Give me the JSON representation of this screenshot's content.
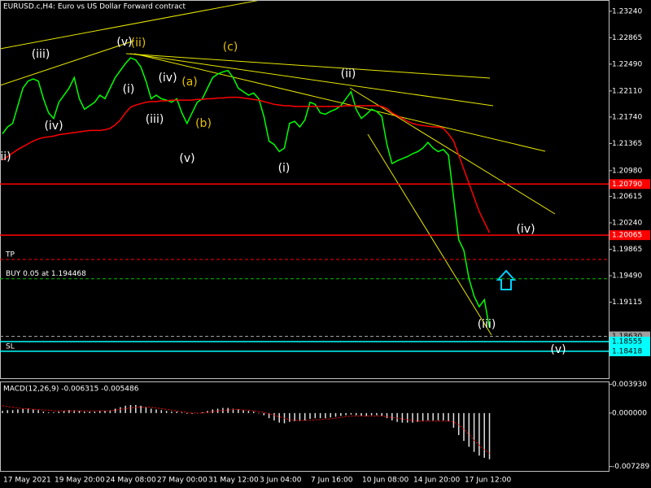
{
  "chart_data": [
    {
      "type": "line",
      "title": "EURUSD.c,H4:  Euro vs US Dollar Forward contract",
      "categories": [
        "17 May 2021",
        null,
        null,
        null,
        null,
        null,
        null,
        null,
        null,
        null,
        "19 May 20:00",
        null,
        null,
        null,
        null,
        null,
        null,
        null,
        null,
        null,
        "24 May 08:00",
        null,
        null,
        null,
        null,
        null,
        null,
        null,
        null,
        null,
        "27 May 00:00",
        null,
        null,
        null,
        null,
        null,
        null,
        null,
        null,
        null,
        "31 May 12:00",
        null,
        null,
        null,
        null,
        null,
        null,
        null,
        null,
        null,
        "3 Jun 04:00",
        null,
        null,
        null,
        null,
        null,
        null,
        null,
        null,
        null,
        "7 Jun 16:00",
        null,
        null,
        null,
        null,
        null,
        null,
        null,
        null,
        null,
        "10 Jun 08:00",
        null,
        null,
        null,
        null,
        null,
        null,
        null,
        null,
        null,
        "14 Jun 20:00",
        null,
        null,
        null,
        null,
        null,
        null,
        null,
        null,
        null,
        "17 Jun 12:00",
        null,
        null,
        null,
        null,
        null
      ],
      "series": [
        {
          "color": "#00ff00",
          "values": [
            1.215,
            1.216,
            1.2165,
            1.219,
            1.2215,
            1.2225,
            1.2228,
            1.2225,
            1.22,
            1.218,
            1.2172,
            1.2195,
            1.2205,
            1.2215,
            1.223,
            1.22,
            1.2185,
            1.219,
            1.2195,
            1.2205,
            1.22,
            1.2215,
            1.223,
            1.224,
            1.225,
            1.2258,
            1.2255,
            1.2245,
            1.2225,
            1.22,
            1.2205,
            1.22,
            1.2198,
            1.2195,
            1.22,
            1.218,
            1.2165,
            1.218,
            1.2195,
            1.22,
            1.2215,
            1.223,
            1.2235,
            1.2238,
            1.224,
            1.223,
            1.2215,
            1.221,
            1.2205,
            1.2208,
            1.22,
            1.2175,
            1.214,
            1.2135,
            1.2125,
            1.213,
            1.2165,
            1.2168,
            1.216,
            1.217,
            1.2195,
            1.2192,
            1.218,
            1.2178,
            1.2182,
            1.2185,
            1.219,
            1.22,
            1.221,
            1.2185,
            1.2172,
            1.2178,
            1.2185,
            1.2182,
            1.2175,
            1.2135,
            1.2108,
            1.2112,
            1.2115,
            1.2118,
            1.2122,
            1.2125,
            1.213,
            1.2138,
            1.213,
            1.2125,
            1.2128,
            1.212,
            1.206,
            1.2,
            1.1985,
            1.1945,
            1.192,
            1.1905,
            1.1915,
            1.1875
          ]
        },
        {
          "color": "#ff0000",
          "values": [
            1.2113,
            1.2118,
            1.2123,
            1.2128,
            1.2132,
            1.2136,
            1.214,
            1.2143,
            1.2145,
            1.2146,
            1.2147,
            1.2149,
            1.215,
            1.2151,
            1.2152,
            1.2153,
            1.2154,
            1.2155,
            1.2155,
            1.2155,
            1.2156,
            1.2158,
            1.2163,
            1.217,
            1.218,
            1.2188,
            1.2191,
            1.2193,
            1.2195,
            1.2196,
            1.2196,
            1.2197,
            1.2197,
            1.2198,
            1.2198,
            1.2198,
            1.2198,
            1.2198,
            1.2199,
            1.2199,
            1.22,
            1.22,
            1.2201,
            1.2201,
            1.2202,
            1.2202,
            1.2202,
            1.2201,
            1.22,
            1.2199,
            1.2198,
            1.2196,
            1.2194,
            1.2192,
            1.2191,
            1.219,
            1.219,
            1.2189,
            1.2189,
            1.2189,
            1.2189,
            1.2189,
            1.2189,
            1.2189,
            1.2189,
            1.2189,
            1.2189,
            1.219,
            1.219,
            1.219,
            1.219,
            1.219,
            1.219,
            1.219,
            1.2189,
            1.2186,
            1.218,
            1.2176,
            1.2172,
            1.2168,
            1.2165,
            1.2163,
            1.2162,
            1.2161,
            1.216,
            1.216,
            1.2158,
            1.215,
            1.214,
            1.212,
            1.21,
            1.208,
            1.206,
            1.204,
            1.2025,
            1.201
          ]
        }
      ],
      "ylim": [
        1.18025,
        1.234
      ],
      "yticks": [
        {
          "value": 1.2324,
          "label": "1.23240"
        },
        {
          "value": 1.22865,
          "label": "1.22865"
        },
        {
          "value": 1.2249,
          "label": "1.22490"
        },
        {
          "value": 1.2211,
          "label": "1.22110"
        },
        {
          "value": 1.2174,
          "label": "1.21740"
        },
        {
          "value": 1.21365,
          "label": "1.21365"
        },
        {
          "value": 1.2098,
          "label": "1.20980"
        },
        {
          "value": 1.20615,
          "label": "1.20615"
        },
        {
          "value": 1.2024,
          "label": "1.20240"
        },
        {
          "value": 1.19865,
          "label": "1.19865"
        },
        {
          "value": 1.1949,
          "label": "1.19490"
        },
        {
          "value": 1.19115,
          "label": "1.19115"
        }
      ],
      "levels": [
        {
          "value": 1.2079,
          "label": "1.20790",
          "color": "#ff0000"
        },
        {
          "value": 1.20065,
          "label": "1.20065",
          "color": "#ff0000"
        },
        {
          "name": "TP",
          "value": 1.1972,
          "color": "#ff0000",
          "dashed": true
        },
        {
          "name": "BUY 0.05 at 1.194468",
          "value": 1.19447,
          "color": "#00c000",
          "dashed": true
        },
        {
          "value": 1.1863,
          "label": "1.18630",
          "color": "#a0a0a0",
          "dashed": true
        },
        {
          "value": 1.18555,
          "label": "1.18555",
          "color": "#00ffff"
        },
        {
          "name": "SL",
          "value": 1.18418,
          "label": "1.18418",
          "color": "#00ffff"
        }
      ],
      "annotations": [
        {
          "text": "ii)",
          "color": "#ffffff"
        },
        {
          "text": "(iii)",
          "color": "#ffffff"
        },
        {
          "text": "(iv)",
          "color": "#ffffff"
        },
        {
          "text": "(v)",
          "color": "#ffffff"
        },
        {
          "text": "(ii)",
          "color": "#e6c000"
        },
        {
          "text": "(i)",
          "color": "#ffffff"
        },
        {
          "text": "(iii)",
          "color": "#ffffff"
        },
        {
          "text": "(iv)",
          "color": "#ffffff"
        },
        {
          "text": "(a)",
          "color": "#e6c000"
        },
        {
          "text": "(b)",
          "color": "#e6c000"
        },
        {
          "text": "(v)",
          "color": "#ffffff"
        },
        {
          "text": "(c)",
          "color": "#e6c000"
        },
        {
          "text": "(i)",
          "color": "#ffffff"
        },
        {
          "text": "(ii)",
          "color": "#ffffff"
        },
        {
          "text": "(iv)",
          "color": "#ffffff"
        },
        {
          "text": "(iii)",
          "color": "#ffffff"
        },
        {
          "text": "(v)",
          "color": "#ffffff"
        }
      ]
    },
    {
      "type": "bar",
      "title": "MACD(12,26,9) -0.006315 -0.005486",
      "series": [
        {
          "type": "bar",
          "color": "#e0e0e0",
          "values": [
            0.0003,
            0.0004,
            0.0004,
            0.0005,
            0.0006,
            0.0006,
            0.0005,
            0.0004,
            0.0002,
            0.0001,
            0.0001,
            0.0002,
            0.0003,
            0.0004,
            0.0004,
            0.0003,
            0.0002,
            0.0002,
            0.0002,
            0.0003,
            0.0003,
            0.0004,
            0.0006,
            0.0008,
            0.001,
            0.0011,
            0.0011,
            0.001,
            0.0008,
            0.0006,
            0.0005,
            0.0004,
            0.0003,
            0.0002,
            0.0002,
            0.0001,
            -0.0001,
            -0.0001,
            0.0,
            0.0001,
            0.0003,
            0.0005,
            0.0006,
            0.0007,
            0.0007,
            0.0006,
            0.0005,
            0.0004,
            0.0003,
            0.0002,
            0.0,
            -0.0003,
            -0.0007,
            -0.001,
            -0.0013,
            -0.0014,
            -0.0012,
            -0.0011,
            -0.0011,
            -0.001,
            -0.0008,
            -0.0007,
            -0.0007,
            -0.0007,
            -0.0006,
            -0.0005,
            -0.0004,
            -0.0003,
            -0.0002,
            -0.0003,
            -0.0004,
            -0.0004,
            -0.0003,
            -0.0003,
            -0.0004,
            -0.0007,
            -0.001,
            -0.0012,
            -0.0013,
            -0.0013,
            -0.0013,
            -0.0012,
            -0.0011,
            -0.001,
            -0.001,
            -0.001,
            -0.001,
            -0.0011,
            -0.002,
            -0.003,
            -0.0038,
            -0.0046,
            -0.0053,
            -0.0058,
            -0.0061,
            -0.0063
          ]
        },
        {
          "type": "line",
          "dashed": true,
          "color": "#ff0000",
          "values": [
            0.001,
            0.0009,
            0.0008,
            0.0007,
            0.0006,
            0.0006,
            0.0005,
            0.0005,
            0.0004,
            0.0004,
            0.0003,
            0.0003,
            0.0003,
            0.0003,
            0.0003,
            0.0003,
            0.0003,
            0.0003,
            0.0003,
            0.0003,
            0.0003,
            0.0003,
            0.0004,
            0.0005,
            0.0006,
            0.0007,
            0.0008,
            0.0008,
            0.0008,
            0.0008,
            0.0007,
            0.0006,
            0.0005,
            0.0004,
            0.0003,
            0.0002,
            0.0001,
            0.0,
            0.0,
            0.0,
            0.0001,
            0.0002,
            0.0003,
            0.0004,
            0.0004,
            0.0005,
            0.0005,
            0.0004,
            0.0004,
            0.0003,
            0.0002,
            0.0001,
            -0.0001,
            -0.0003,
            -0.0005,
            -0.0007,
            -0.0009,
            -0.001,
            -0.001,
            -0.001,
            -0.001,
            -0.0009,
            -0.0009,
            -0.0008,
            -0.0008,
            -0.0007,
            -0.0006,
            -0.0005,
            -0.0004,
            -0.0004,
            -0.0004,
            -0.0004,
            -0.0004,
            -0.0004,
            -0.0004,
            -0.0005,
            -0.0006,
            -0.0007,
            -0.0008,
            -0.0009,
            -0.001,
            -0.0011,
            -0.0011,
            -0.0011,
            -0.0011,
            -0.0011,
            -0.0011,
            -0.0011,
            -0.0012,
            -0.0016,
            -0.0022,
            -0.0029,
            -0.0037,
            -0.0044,
            -0.005,
            -0.0055
          ]
        }
      ],
      "ylim": [
        -0.008,
        0.0042
      ],
      "yticks": [
        {
          "value": 0.00393,
          "label": "0.003930"
        },
        {
          "value": 0,
          "label": "0.000000"
        },
        {
          "value": -0.007289,
          "label": "-0.007289"
        }
      ]
    }
  ]
}
